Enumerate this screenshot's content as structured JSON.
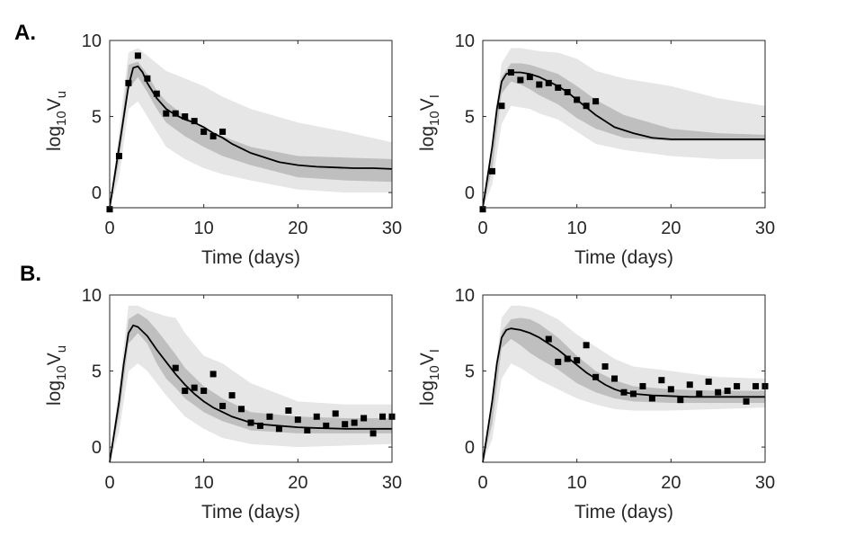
{
  "figure": {
    "panel_labels": [
      "A.",
      "B."
    ]
  },
  "chart_data": [
    {
      "type": "line",
      "panel": "A.",
      "xlabel": "Time (days)",
      "ylabel": {
        "base": "log",
        "sub1": "10",
        "main": "V",
        "sub2": "u"
      },
      "xlim": [
        0,
        30
      ],
      "ylim": [
        -1,
        10
      ],
      "xticks": [
        0,
        10,
        20,
        30
      ],
      "yticks": [
        0,
        5,
        10
      ],
      "grid": false,
      "band_outer": {
        "x": [
          0,
          1,
          2,
          3,
          4,
          5,
          6,
          8,
          10,
          12,
          15,
          20,
          25,
          30
        ],
        "lo": [
          -1,
          1,
          5.5,
          6,
          5,
          4,
          3,
          2.2,
          1.6,
          1.2,
          0.8,
          0.2,
          0,
          0
        ],
        "hi": [
          -1,
          4,
          9.2,
          9.5,
          9,
          8.5,
          8,
          7.5,
          7,
          6.3,
          5.5,
          4.6,
          4,
          3.3
        ]
      },
      "band_inner": {
        "x": [
          0,
          1,
          2,
          3,
          4,
          5,
          6,
          8,
          10,
          12,
          15,
          20,
          25,
          30
        ],
        "lo": [
          -1,
          2,
          6.8,
          7.6,
          6.6,
          5.5,
          4.6,
          3.7,
          3,
          2.4,
          1.8,
          1,
          0.8,
          0.7
        ],
        "hi": [
          -1,
          3,
          8.4,
          8.6,
          7.8,
          6.7,
          6,
          5,
          4.3,
          3.7,
          3,
          2.4,
          2.3,
          2.2
        ]
      },
      "line": {
        "x": [
          0,
          0.5,
          1,
          1.5,
          2,
          2.5,
          3,
          3.5,
          4,
          5,
          6,
          7,
          8,
          9,
          10,
          11,
          12,
          13,
          14,
          15,
          16,
          18,
          20,
          22,
          24,
          26,
          28,
          30
        ],
        "y": [
          -1,
          1,
          3,
          5,
          7,
          8.2,
          8.3,
          7.9,
          7.2,
          6.2,
          5.5,
          5.1,
          4.8,
          4.6,
          4.3,
          3.9,
          3.6,
          3.2,
          2.9,
          2.6,
          2.4,
          2.0,
          1.8,
          1.7,
          1.65,
          1.6,
          1.6,
          1.55
        ]
      },
      "points": {
        "x": [
          0,
          1,
          2,
          3,
          4,
          5,
          6,
          7,
          8,
          9,
          10,
          11,
          12
        ],
        "y": [
          -1.1,
          2.4,
          7.2,
          9,
          7.5,
          6.5,
          5.2,
          5.2,
          5,
          4.7,
          4,
          3.7,
          4
        ]
      }
    },
    {
      "type": "line",
      "panel": "",
      "xlabel": "Time (days)",
      "ylabel": {
        "base": "log",
        "sub1": "10",
        "main": "V",
        "sub2": "I"
      },
      "xlim": [
        0,
        30
      ],
      "ylim": [
        -1,
        10
      ],
      "xticks": [
        0,
        10,
        20,
        30
      ],
      "yticks": [
        0,
        5,
        10
      ],
      "grid": false,
      "band_outer": {
        "x": [
          0,
          1,
          2,
          3,
          4,
          5,
          6,
          8,
          10,
          12,
          15,
          20,
          25,
          30
        ],
        "lo": [
          -1,
          0.5,
          4.5,
          5.7,
          5.6,
          5.5,
          5.2,
          4.8,
          4,
          3.2,
          2.8,
          2.4,
          2.2,
          2.2
        ],
        "hi": [
          -1,
          3.5,
          8.5,
          9.5,
          9.5,
          9.4,
          9.3,
          9.2,
          8.8,
          8,
          7.5,
          7,
          6.2,
          5.7
        ]
      },
      "band_inner": {
        "x": [
          0,
          1,
          2,
          3,
          4,
          5,
          6,
          8,
          10,
          12,
          15,
          20,
          25,
          30
        ],
        "lo": [
          -1,
          1.5,
          6.5,
          7.3,
          7.1,
          6.8,
          6.4,
          5.8,
          4.9,
          4.2,
          3.6,
          3.4,
          3.4,
          3.4
        ],
        "hi": [
          -1,
          2.5,
          7.6,
          8.5,
          8.5,
          8.4,
          8.2,
          7.8,
          7,
          6.1,
          5.1,
          4.2,
          3.9,
          3.8
        ]
      },
      "line": {
        "x": [
          0,
          0.5,
          1,
          1.5,
          2,
          2.5,
          3,
          4,
          5,
          6,
          7,
          8,
          9,
          10,
          11,
          12,
          13,
          14,
          16,
          18,
          20,
          22,
          25,
          30
        ],
        "y": [
          -1,
          1,
          3,
          5.5,
          7.3,
          7.8,
          7.9,
          7.9,
          7.8,
          7.6,
          7.3,
          7,
          6.6,
          6.1,
          5.6,
          5.1,
          4.7,
          4.3,
          3.9,
          3.6,
          3.5,
          3.5,
          3.5,
          3.5
        ]
      },
      "points": {
        "x": [
          0,
          1,
          2,
          3,
          4,
          5,
          6,
          7,
          8,
          9,
          10,
          11,
          12
        ],
        "y": [
          -1.1,
          1.4,
          5.7,
          7.9,
          7.4,
          7.6,
          7.1,
          7.2,
          6.9,
          6.6,
          6.1,
          5.7,
          6
        ]
      }
    },
    {
      "type": "line",
      "panel": "B.",
      "xlabel": "Time (days)",
      "ylabel": {
        "base": "log",
        "sub1": "10",
        "main": "V",
        "sub2": "u"
      },
      "xlim": [
        0,
        30
      ],
      "ylim": [
        -1,
        10
      ],
      "xticks": [
        0,
        10,
        20,
        30
      ],
      "yticks": [
        0,
        5,
        10
      ],
      "grid": false,
      "band_outer": {
        "x": [
          0,
          1,
          2,
          3,
          4,
          5,
          6,
          7,
          8,
          10,
          12,
          15,
          20,
          25,
          30
        ],
        "lo": [
          -1,
          1,
          5,
          5.5,
          5,
          4.2,
          3.4,
          2.7,
          2,
          1.2,
          0.6,
          0.2,
          0,
          0.1,
          0.2
        ],
        "hi": [
          -1,
          4,
          9.3,
          9.3,
          9,
          8.8,
          8.6,
          8.5,
          7.5,
          6,
          5.5,
          4.2,
          3,
          2.8,
          2.8
        ]
      },
      "band_inner": {
        "x": [
          0,
          1,
          2,
          3,
          4,
          5,
          6,
          7,
          8,
          10,
          12,
          15,
          20,
          25,
          30
        ],
        "lo": [
          -1,
          2,
          6.8,
          7.5,
          6.8,
          5.5,
          4.5,
          3.9,
          3.2,
          2.3,
          1.7,
          1.1,
          0.9,
          0.9,
          0.9
        ],
        "hi": [
          -1,
          3,
          8.4,
          8.8,
          8.4,
          7.7,
          6.9,
          6.1,
          5.2,
          4,
          3.2,
          2.3,
          2,
          1.9,
          1.9
        ]
      },
      "line": {
        "x": [
          0,
          0.5,
          1,
          1.5,
          2,
          2.5,
          3,
          4,
          5,
          6,
          7,
          8,
          9,
          10,
          11,
          12,
          13,
          14,
          15,
          16,
          18,
          20,
          22,
          25,
          30
        ],
        "y": [
          -1,
          1,
          3,
          5.5,
          7.5,
          8,
          7.9,
          7.3,
          6.4,
          5.6,
          4.8,
          4.1,
          3.5,
          3,
          2.6,
          2.3,
          2,
          1.8,
          1.6,
          1.5,
          1.4,
          1.3,
          1.25,
          1.2,
          1.2
        ]
      },
      "points": {
        "x": [
          7,
          8,
          9,
          10,
          11,
          12,
          13,
          14,
          15,
          16,
          17,
          18,
          19,
          20,
          21,
          22,
          23,
          24,
          25,
          26,
          27,
          28,
          29,
          30
        ],
        "y": [
          5.2,
          3.7,
          3.9,
          3.7,
          4.8,
          2.7,
          3.4,
          2.5,
          1.6,
          1.4,
          2,
          1.2,
          2.4,
          1.8,
          1.1,
          2,
          1.4,
          2.2,
          1.5,
          1.6,
          1.9,
          0.9,
          2,
          2
        ]
      }
    },
    {
      "type": "line",
      "panel": "",
      "xlabel": "Time (days)",
      "ylabel": {
        "base": "log",
        "sub1": "10",
        "main": "V",
        "sub2": "I"
      },
      "xlim": [
        0,
        30
      ],
      "ylim": [
        -1,
        10
      ],
      "xticks": [
        0,
        10,
        20,
        30
      ],
      "yticks": [
        0,
        5,
        10
      ],
      "grid": false,
      "band_outer": {
        "x": [
          0,
          1,
          2,
          3,
          4,
          5,
          6,
          8,
          10,
          12,
          14,
          16,
          20,
          25,
          30
        ],
        "lo": [
          -1,
          0.5,
          4.5,
          5.5,
          5.2,
          4.8,
          4.4,
          3.8,
          3.2,
          2.8,
          2.5,
          2.4,
          2.4,
          2.5,
          2.6
        ],
        "hi": [
          -1,
          3.5,
          8.5,
          9.3,
          9.3,
          9.2,
          9,
          8.4,
          7.4,
          6.6,
          5.8,
          5.3,
          5,
          4.6,
          4.5
        ]
      },
      "band_inner": {
        "x": [
          0,
          1,
          2,
          3,
          4,
          5,
          6,
          8,
          10,
          12,
          14,
          16,
          20,
          25,
          30
        ],
        "lo": [
          -1,
          1.5,
          6.5,
          7.1,
          6.7,
          6.2,
          5.8,
          5.1,
          4.2,
          3.6,
          3.2,
          3,
          2.9,
          2.9,
          2.9
        ],
        "hi": [
          -1,
          2.5,
          7.6,
          8.4,
          8.5,
          8.4,
          8.1,
          7.2,
          6,
          5,
          4.4,
          4,
          3.8,
          3.7,
          3.7
        ]
      },
      "line": {
        "x": [
          0,
          0.5,
          1,
          1.5,
          2,
          2.5,
          3,
          4,
          5,
          6,
          7,
          8,
          9,
          10,
          11,
          12,
          13,
          14,
          15,
          16,
          18,
          20,
          22,
          25,
          30
        ],
        "y": [
          -1,
          1,
          3,
          5.5,
          7.2,
          7.7,
          7.8,
          7.7,
          7.5,
          7.2,
          6.8,
          6.4,
          5.9,
          5.4,
          4.9,
          4.5,
          4.1,
          3.8,
          3.6,
          3.5,
          3.4,
          3.35,
          3.3,
          3.3,
          3.3
        ]
      },
      "points": {
        "x": [
          7,
          8,
          9,
          10,
          11,
          12,
          13,
          14,
          15,
          16,
          17,
          18,
          19,
          20,
          21,
          22,
          23,
          24,
          25,
          26,
          27,
          28,
          29,
          30
        ],
        "y": [
          7.1,
          5.6,
          5.8,
          5.7,
          6.7,
          4.6,
          5.3,
          4.5,
          3.6,
          3.5,
          4,
          3.2,
          4.4,
          3.8,
          3.1,
          4.1,
          3.5,
          4.3,
          3.6,
          3.7,
          4,
          3,
          4,
          4
        ]
      }
    }
  ]
}
